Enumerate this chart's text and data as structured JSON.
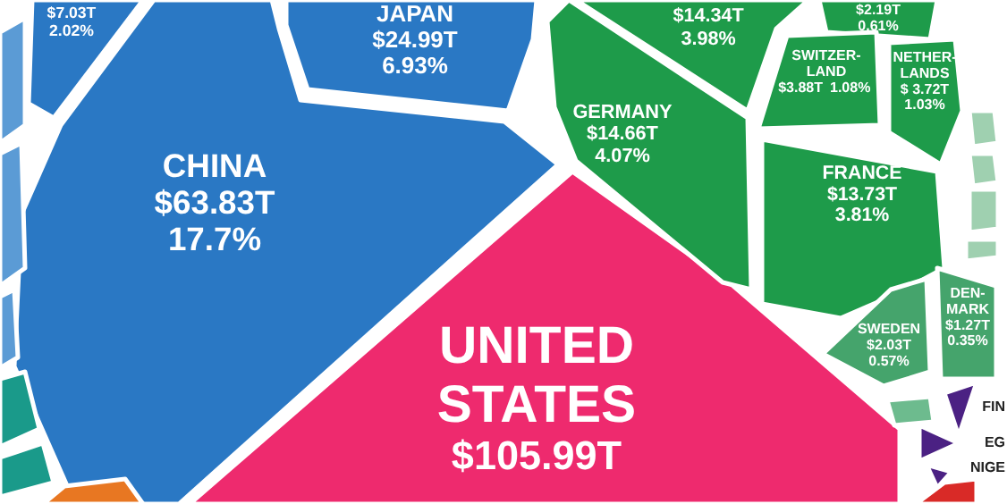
{
  "chart_data": {
    "type": "other",
    "categories": [
      null,
      "JAPAN",
      "CHINA",
      "UNITED STATES",
      null,
      null,
      "SWITZER-LAND",
      "NETHER-LANDS",
      "GERMANY",
      "FRANCE",
      "SWEDEN",
      "DEN-MARK",
      null,
      null,
      null,
      null,
      null,
      null,
      null,
      null,
      null,
      null,
      null,
      null,
      null,
      null,
      null
    ],
    "series": [
      {
        "values": [
          null,
          24.99,
          63.83,
          105.99,
          null,
          null,
          3.88,
          3.72,
          14.66,
          13.73,
          2.03,
          1.27,
          null,
          null,
          null,
          null,
          null,
          null,
          null,
          null,
          null,
          null,
          null,
          null,
          null,
          null,
          null
        ],
        "value_labels": [
          null,
          "$24.99T",
          "$63.83T",
          "$105.99T",
          null,
          null,
          "$3.88T",
          "$ 3.72T",
          "$14.66T",
          "$13.73T",
          "$2.03T",
          "$1.27T",
          null,
          null,
          null,
          null,
          null,
          null,
          null,
          null,
          null,
          null,
          null,
          null,
          null,
          null,
          null
        ],
        "colors": [
          "#2a78c4",
          "#2a78c4",
          "#2a78c4",
          "#ee2a6e",
          "#1e9b4a",
          "#1e9b4a",
          "#1e9b4a",
          "#1e9b4a",
          "#1e9b4a",
          "#1e9b4a",
          "#45a46c",
          "#45a46c",
          "#9fd0b0",
          "#9fd0b0",
          "#9fd0b0",
          "#9fd0b0",
          "#6dbb8e",
          "#4b2183",
          "#4b2183",
          "#4b2183",
          "#d92a27",
          "#5b9bd5",
          "#5b9bd5",
          "#5b9bd5",
          "#1a9a8a",
          "#1a9a8a",
          "#e87722"
        ]
      },
      {
        "values": [
          null,
          6.93,
          17.7,
          null,
          null,
          null,
          1.08,
          1.03,
          4.07,
          3.81,
          0.57,
          0.35,
          null,
          null,
          null,
          null,
          null,
          null,
          null,
          null,
          null,
          null,
          null,
          null,
          null,
          null,
          null
        ],
        "value_labels": [
          null,
          "6.93%",
          "17.7%",
          null,
          null,
          null,
          "1.08%",
          "1.03%",
          "4.07%",
          "3.81%",
          "0.57%",
          "0.35%",
          null,
          null,
          null,
          null,
          null,
          null,
          null,
          null,
          null,
          null,
          null,
          null,
          null,
          null,
          null
        ]
      }
    ],
    "annotations": [
      {
        "text": "FIN"
      },
      {
        "text": "EG"
      },
      {
        "text": "NIGE"
      },
      "$7.03T",
      "2.02%",
      "$14.34T",
      "3.98%",
      "$2.19T",
      "0.61%"
    ]
  }
}
